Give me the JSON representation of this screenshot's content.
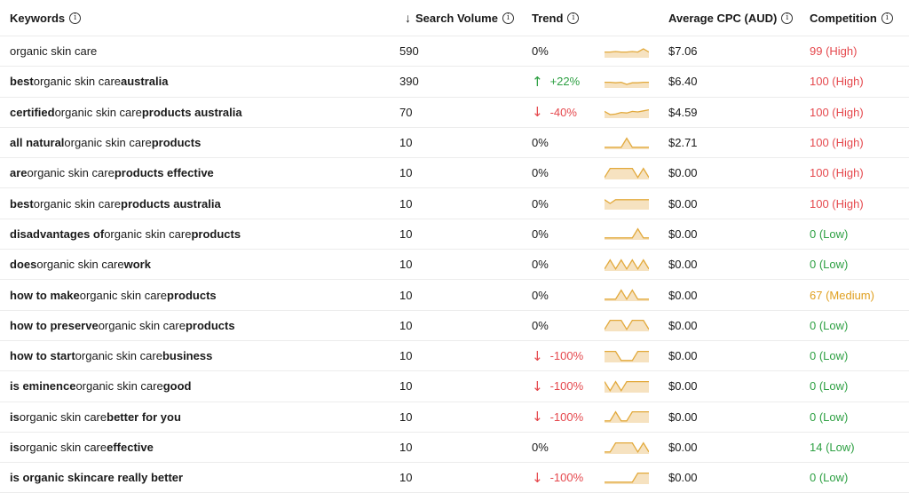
{
  "header": {
    "keywords": "Keywords",
    "search_volume": "Search Volume",
    "sort_arrow": "↓",
    "trend": "Trend",
    "cpc": "Average CPC (AUD)",
    "competition": "Competition",
    "info": "i"
  },
  "rows": [
    {
      "kw": [
        {
          "t": "organic skin care",
          "b": false
        }
      ],
      "volume": "590",
      "trend": "0%",
      "dir": "neutral",
      "arrow": "",
      "spark": [
        0.55,
        0.55,
        0.5,
        0.55,
        0.55,
        0.5,
        0.55,
        0.25,
        0.55
      ],
      "cpc": "$7.06",
      "comp": "99 (High)",
      "level": "high"
    },
    {
      "kw": [
        {
          "t": "best",
          "b": true
        },
        {
          "t": " organic skin care ",
          "b": false
        },
        {
          "t": "australia",
          "b": true
        }
      ],
      "volume": "390",
      "trend": "+22%",
      "dir": "up",
      "arrow": "↑",
      "spark": [
        0.55,
        0.55,
        0.6,
        0.55,
        0.75,
        0.6,
        0.6,
        0.55,
        0.55
      ],
      "cpc": "$6.40",
      "comp": "100 (High)",
      "level": "high"
    },
    {
      "kw": [
        {
          "t": "certified",
          "b": true
        },
        {
          "t": " organic skin care ",
          "b": false
        },
        {
          "t": "products australia",
          "b": true
        }
      ],
      "volume": "70",
      "trend": "-40%",
      "dir": "down",
      "arrow": "↓",
      "spark": [
        0.45,
        0.75,
        0.7,
        0.55,
        0.6,
        0.45,
        0.5,
        0.4,
        0.3
      ],
      "cpc": "$4.59",
      "comp": "100 (High)",
      "level": "high"
    },
    {
      "kw": [
        {
          "t": "all natural",
          "b": true
        },
        {
          "t": " organic skin care ",
          "b": false
        },
        {
          "t": "products",
          "b": true
        }
      ],
      "volume": "10",
      "trend": "0%",
      "dir": "neutral",
      "arrow": "",
      "spark": [
        0.9,
        0.9,
        0.9,
        0.9,
        0.05,
        0.9,
        0.9,
        0.9,
        0.9
      ],
      "cpc": "$2.71",
      "comp": "100 (High)",
      "level": "high"
    },
    {
      "kw": [
        {
          "t": "are",
          "b": true
        },
        {
          "t": " organic skin care ",
          "b": false
        },
        {
          "t": "products effective",
          "b": true
        }
      ],
      "volume": "10",
      "trend": "0%",
      "dir": "neutral",
      "arrow": "",
      "spark": [
        0.9,
        0.05,
        0.05,
        0.05,
        0.05,
        0.05,
        0.9,
        0.05,
        0.9
      ],
      "cpc": "$0.00",
      "comp": "100 (High)",
      "level": "high"
    },
    {
      "kw": [
        {
          "t": "best",
          "b": true
        },
        {
          "t": " organic skin care ",
          "b": false
        },
        {
          "t": "products australia",
          "b": true
        }
      ],
      "volume": "10",
      "trend": "0%",
      "dir": "neutral",
      "arrow": "",
      "spark": [
        0.15,
        0.5,
        0.15,
        0.15,
        0.15,
        0.15,
        0.15,
        0.15,
        0.15
      ],
      "cpc": "$0.00",
      "comp": "100 (High)",
      "level": "high"
    },
    {
      "kw": [
        {
          "t": "disadvantages of",
          "b": true
        },
        {
          "t": " organic skin care ",
          "b": false
        },
        {
          "t": "products",
          "b": true
        }
      ],
      "volume": "10",
      "trend": "0%",
      "dir": "neutral",
      "arrow": "",
      "spark": [
        0.9,
        0.9,
        0.9,
        0.9,
        0.9,
        0.9,
        0.05,
        0.9,
        0.9
      ],
      "cpc": "$0.00",
      "comp": "0 (Low)",
      "level": "low"
    },
    {
      "kw": [
        {
          "t": "does",
          "b": true
        },
        {
          "t": " organic skin care ",
          "b": false
        },
        {
          "t": "work",
          "b": true
        }
      ],
      "volume": "10",
      "trend": "0%",
      "dir": "neutral",
      "arrow": "",
      "spark": [
        0.9,
        0.05,
        0.9,
        0.05,
        0.9,
        0.05,
        0.9,
        0.05,
        0.9
      ],
      "cpc": "$0.00",
      "comp": "0 (Low)",
      "level": "low"
    },
    {
      "kw": [
        {
          "t": "how to make",
          "b": true
        },
        {
          "t": " organic skin care ",
          "b": false
        },
        {
          "t": "products",
          "b": true
        }
      ],
      "volume": "10",
      "trend": "0%",
      "dir": "neutral",
      "arrow": "",
      "spark": [
        0.9,
        0.9,
        0.9,
        0.05,
        0.9,
        0.05,
        0.9,
        0.9,
        0.9
      ],
      "cpc": "$0.00",
      "comp": "67 (Medium)",
      "level": "medium"
    },
    {
      "kw": [
        {
          "t": "how to preserve",
          "b": true
        },
        {
          "t": " organic skin care ",
          "b": false
        },
        {
          "t": "products",
          "b": true
        }
      ],
      "volume": "10",
      "trend": "0%",
      "dir": "neutral",
      "arrow": "",
      "spark": [
        0.9,
        0.05,
        0.05,
        0.05,
        0.9,
        0.05,
        0.05,
        0.05,
        0.9
      ],
      "cpc": "$0.00",
      "comp": "0 (Low)",
      "level": "low"
    },
    {
      "kw": [
        {
          "t": "how to start",
          "b": true
        },
        {
          "t": " organic skin care ",
          "b": false
        },
        {
          "t": "business",
          "b": true
        }
      ],
      "volume": "10",
      "trend": "-100%",
      "dir": "down",
      "arrow": "↓",
      "spark": [
        0.05,
        0.05,
        0.05,
        0.9,
        0.9,
        0.9,
        0.05,
        0.05,
        0.05
      ],
      "cpc": "$0.00",
      "comp": "0 (Low)",
      "level": "low"
    },
    {
      "kw": [
        {
          "t": "is eminence",
          "b": true
        },
        {
          "t": " organic skin care ",
          "b": false
        },
        {
          "t": "good",
          "b": true
        }
      ],
      "volume": "10",
      "trend": "-100%",
      "dir": "down",
      "arrow": "↓",
      "spark": [
        0.05,
        0.9,
        0.05,
        0.9,
        0.05,
        0.05,
        0.05,
        0.05,
        0.05
      ],
      "cpc": "$0.00",
      "comp": "0 (Low)",
      "level": "low"
    },
    {
      "kw": [
        {
          "t": "is",
          "b": true
        },
        {
          "t": " organic skin care ",
          "b": false
        },
        {
          "t": "better for you",
          "b": true
        }
      ],
      "volume": "10",
      "trend": "-100%",
      "dir": "down",
      "arrow": "↓",
      "spark": [
        0.9,
        0.9,
        0.05,
        0.9,
        0.9,
        0.05,
        0.05,
        0.05,
        0.05
      ],
      "cpc": "$0.00",
      "comp": "0 (Low)",
      "level": "low"
    },
    {
      "kw": [
        {
          "t": "is",
          "b": true
        },
        {
          "t": " organic skin care ",
          "b": false
        },
        {
          "t": "effective",
          "b": true
        }
      ],
      "volume": "10",
      "trend": "0%",
      "dir": "neutral",
      "arrow": "",
      "spark": [
        0.9,
        0.9,
        0.05,
        0.05,
        0.05,
        0.05,
        0.9,
        0.05,
        0.9
      ],
      "cpc": "$0.00",
      "comp": "14 (Low)",
      "level": "low"
    },
    {
      "kw": [
        {
          "t": "is organic skincare really better",
          "b": true
        }
      ],
      "volume": "10",
      "trend": "-100%",
      "dir": "down",
      "arrow": "↓",
      "spark": [
        0.9,
        0.9,
        0.9,
        0.9,
        0.9,
        0.9,
        0.05,
        0.05,
        0.05
      ],
      "cpc": "$0.00",
      "comp": "0 (Low)",
      "level": "low"
    }
  ],
  "colors": {
    "spark_line": "#e2a93b",
    "spark_fill": "#f6e2c0",
    "up": "#2ea043",
    "down": "#e5484d",
    "medium": "#e0a020"
  }
}
